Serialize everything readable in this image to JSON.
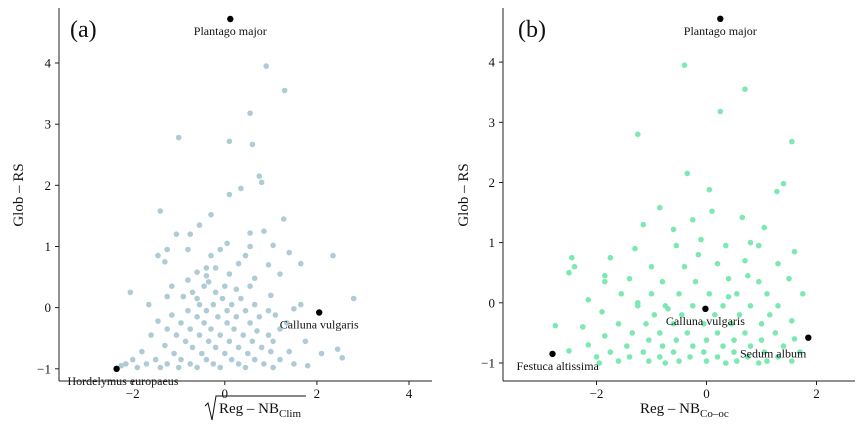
{
  "chart_data": [
    {
      "type": "scatter",
      "panel_label": "(a)",
      "xlabel": "Reg – NB",
      "xlabel_sub": "Clim",
      "xlabel_sqrt": true,
      "ylabel": "Glob – RS",
      "xlim": [
        -3.6,
        4.5
      ],
      "ylim": [
        -1.2,
        4.9
      ],
      "xticks": [
        -2,
        0,
        2,
        4
      ],
      "yticks": [
        -1,
        0,
        1,
        2,
        3,
        4
      ],
      "grid": false,
      "point_color": "#aecbd6",
      "highlight_color": "#000000",
      "highlighted": [
        {
          "label": "Plantago major",
          "x": 0.12,
          "y": 4.72,
          "label_pos": "below"
        },
        {
          "label": "Calluna vulgaris",
          "x": 2.05,
          "y": -0.08,
          "label_pos": "below"
        },
        {
          "label": "Hordelymus europaeus",
          "x": -2.35,
          "y": -1.0,
          "label_pos": "below"
        }
      ],
      "points": [
        [
          0.9,
          3.95
        ],
        [
          1.3,
          3.55
        ],
        [
          0.55,
          3.18
        ],
        [
          -1.0,
          2.78
        ],
        [
          0.6,
          2.67
        ],
        [
          0.1,
          2.72
        ],
        [
          0.75,
          2.15
        ],
        [
          0.8,
          2.05
        ],
        [
          0.1,
          1.85
        ],
        [
          0.35,
          1.95
        ],
        [
          -1.4,
          1.58
        ],
        [
          -0.3,
          1.52
        ],
        [
          1.28,
          1.45
        ],
        [
          -0.55,
          1.35
        ],
        [
          -0.75,
          1.2
        ],
        [
          0.55,
          1.22
        ],
        [
          0.85,
          1.25
        ],
        [
          -1.05,
          1.2
        ],
        [
          0.55,
          1.0
        ],
        [
          0.05,
          1.05
        ],
        [
          1.05,
          1.02
        ],
        [
          -1.45,
          0.85
        ],
        [
          -1.25,
          0.95
        ],
        [
          -0.8,
          0.95
        ],
        [
          1.4,
          0.9
        ],
        [
          2.35,
          0.85
        ],
        [
          -1.3,
          0.75
        ],
        [
          -0.4,
          0.65
        ],
        [
          -0.2,
          0.65
        ],
        [
          1.65,
          0.72
        ],
        [
          0.3,
          0.72
        ],
        [
          0.95,
          0.7
        ],
        [
          -0.6,
          0.58
        ],
        [
          -0.4,
          0.52
        ],
        [
          0.1,
          0.55
        ],
        [
          -0.8,
          0.45
        ],
        [
          -0.35,
          0.42
        ],
        [
          0.65,
          0.48
        ],
        [
          -1.15,
          0.35
        ],
        [
          -0.45,
          0.35
        ],
        [
          -0.2,
          0.25
        ],
        [
          0.25,
          0.3
        ],
        [
          -1.25,
          0.18
        ],
        [
          -0.9,
          0.18
        ],
        [
          -0.6,
          0.15
        ],
        [
          -0.05,
          0.15
        ],
        [
          0.35,
          0.15
        ],
        [
          1.0,
          0.2
        ],
        [
          -2.05,
          0.25
        ],
        [
          2.8,
          0.15
        ],
        [
          -1.65,
          0.05
        ],
        [
          -0.55,
          0.05
        ],
        [
          -0.25,
          0.05
        ],
        [
          0.15,
          0.05
        ],
        [
          0.65,
          0.05
        ],
        [
          1.65,
          0.05
        ],
        [
          -0.8,
          -0.05
        ],
        [
          -0.4,
          -0.05
        ],
        [
          0.05,
          -0.05
        ],
        [
          0.45,
          -0.05
        ],
        [
          0.95,
          -0.05
        ],
        [
          1.5,
          -0.02
        ],
        [
          -1.15,
          -0.12
        ],
        [
          -0.6,
          -0.15
        ],
        [
          -0.15,
          -0.15
        ],
        [
          0.25,
          -0.15
        ],
        [
          0.75,
          -0.15
        ],
        [
          1.1,
          -0.12
        ],
        [
          -1.45,
          -0.22
        ],
        [
          -0.95,
          -0.25
        ],
        [
          -0.45,
          -0.25
        ],
        [
          0.05,
          -0.25
        ],
        [
          0.55,
          -0.25
        ],
        [
          1.35,
          -0.25
        ],
        [
          -1.25,
          -0.35
        ],
        [
          -0.75,
          -0.35
        ],
        [
          -0.3,
          -0.35
        ],
        [
          0.2,
          -0.35
        ],
        [
          0.7,
          -0.38
        ],
        [
          1.2,
          -0.35
        ],
        [
          -1.6,
          -0.45
        ],
        [
          -1.05,
          -0.45
        ],
        [
          -0.55,
          -0.45
        ],
        [
          -0.1,
          -0.45
        ],
        [
          0.4,
          -0.45
        ],
        [
          0.95,
          -0.45
        ],
        [
          -0.85,
          -0.55
        ],
        [
          -0.35,
          -0.55
        ],
        [
          0.1,
          -0.55
        ],
        [
          0.6,
          -0.55
        ],
        [
          1.05,
          -0.55
        ],
        [
          1.75,
          -0.55
        ],
        [
          -1.3,
          -0.62
        ],
        [
          -0.7,
          -0.65
        ],
        [
          -0.2,
          -0.65
        ],
        [
          0.3,
          -0.65
        ],
        [
          0.8,
          -0.65
        ],
        [
          2.45,
          -0.68
        ],
        [
          -1.8,
          -0.72
        ],
        [
          -1.1,
          -0.75
        ],
        [
          -0.5,
          -0.75
        ],
        [
          0.0,
          -0.75
        ],
        [
          0.5,
          -0.75
        ],
        [
          1.0,
          -0.72
        ],
        [
          1.4,
          -0.72
        ],
        [
          2.1,
          -0.75
        ],
        [
          -2.0,
          -0.85
        ],
        [
          -1.5,
          -0.85
        ],
        [
          -0.95,
          -0.85
        ],
        [
          -0.4,
          -0.85
        ],
        [
          0.15,
          -0.85
        ],
        [
          0.65,
          -0.85
        ],
        [
          1.2,
          -0.85
        ],
        [
          2.55,
          -0.82
        ],
        [
          -2.15,
          -0.92
        ],
        [
          -1.7,
          -0.92
        ],
        [
          -1.25,
          -0.92
        ],
        [
          -0.75,
          -0.92
        ],
        [
          -0.25,
          -0.92
        ],
        [
          0.3,
          -0.92
        ],
        [
          0.85,
          -0.92
        ],
        [
          1.5,
          -0.92
        ],
        [
          1.8,
          -0.95
        ],
        [
          -1.9,
          -0.98
        ],
        [
          -1.4,
          -0.98
        ],
        [
          -1.0,
          -0.98
        ],
        [
          -0.6,
          -0.98
        ],
        [
          -0.1,
          -0.98
        ],
        [
          0.45,
          -0.98
        ],
        [
          1.05,
          -0.98
        ],
        [
          -2.25,
          -0.95
        ],
        [
          -0.3,
          0.85
        ],
        [
          0.45,
          0.85
        ],
        [
          -0.1,
          0.95
        ],
        [
          1.2,
          0.55
        ],
        [
          0.0,
          0.35
        ],
        [
          -0.7,
          0.25
        ],
        [
          0.55,
          0.35
        ]
      ]
    },
    {
      "type": "scatter",
      "panel_label": "(b)",
      "xlabel": "Reg – NB",
      "xlabel_sub": "Co–oc",
      "xlabel_sqrt": false,
      "ylabel": "Glob – RS",
      "xlim": [
        -3.7,
        2.7
      ],
      "ylim": [
        -1.3,
        4.9
      ],
      "xticks": [
        -2,
        0,
        2
      ],
      "yticks": [
        -1,
        0,
        1,
        2,
        3,
        4
      ],
      "grid": false,
      "point_color": "#7de8b1",
      "highlight_color": "#000000",
      "highlighted": [
        {
          "label": "Plantago major",
          "x": 0.25,
          "y": 4.72,
          "label_pos": "below"
        },
        {
          "label": "Calluna vulgaris",
          "x": -0.02,
          "y": -0.1,
          "label_pos": "below"
        },
        {
          "label": "Sedum album",
          "x": 1.85,
          "y": -0.58,
          "label_pos": "below-left"
        },
        {
          "label": "Festuca altissima",
          "x": -2.8,
          "y": -0.85,
          "label_pos": "below"
        }
      ],
      "points": [
        [
          -0.4,
          3.95
        ],
        [
          0.7,
          3.55
        ],
        [
          0.25,
          3.18
        ],
        [
          -1.25,
          2.8
        ],
        [
          1.55,
          2.68
        ],
        [
          -0.35,
          2.15
        ],
        [
          0.05,
          1.88
        ],
        [
          1.4,
          1.98
        ],
        [
          1.28,
          1.85
        ],
        [
          -0.85,
          1.58
        ],
        [
          0.1,
          1.52
        ],
        [
          -1.15,
          1.3
        ],
        [
          -0.25,
          1.38
        ],
        [
          0.65,
          1.42
        ],
        [
          1.05,
          1.25
        ],
        [
          -0.6,
          1.22
        ],
        [
          0.8,
          1.0
        ],
        [
          -0.1,
          1.05
        ],
        [
          -2.45,
          0.75
        ],
        [
          -1.85,
          0.45
        ],
        [
          -1.3,
          0.9
        ],
        [
          -0.55,
          0.95
        ],
        [
          0.35,
          0.95
        ],
        [
          0.95,
          0.95
        ],
        [
          1.6,
          0.85
        ],
        [
          -1.75,
          0.75
        ],
        [
          -1.0,
          0.6
        ],
        [
          -0.4,
          0.6
        ],
        [
          0.2,
          0.65
        ],
        [
          0.7,
          0.7
        ],
        [
          1.3,
          0.65
        ],
        [
          -2.4,
          0.6
        ],
        [
          -1.85,
          0.35
        ],
        [
          -1.4,
          0.4
        ],
        [
          -0.8,
          0.35
        ],
        [
          -0.2,
          0.35
        ],
        [
          0.4,
          0.4
        ],
        [
          0.95,
          0.35
        ],
        [
          1.5,
          0.4
        ],
        [
          -2.5,
          0.5
        ],
        [
          -1.55,
          0.15
        ],
        [
          -1.0,
          0.15
        ],
        [
          -0.5,
          0.15
        ],
        [
          0.05,
          0.15
        ],
        [
          0.55,
          0.15
        ],
        [
          1.1,
          0.15
        ],
        [
          1.75,
          0.15
        ],
        [
          -2.15,
          0.05
        ],
        [
          -1.25,
          -0.05
        ],
        [
          -0.75,
          -0.05
        ],
        [
          -0.25,
          -0.05
        ],
        [
          0.3,
          -0.05
        ],
        [
          0.8,
          -0.05
        ],
        [
          1.3,
          -0.05
        ],
        [
          -1.9,
          -0.15
        ],
        [
          -0.95,
          -0.2
        ],
        [
          -0.45,
          -0.2
        ],
        [
          0.15,
          -0.2
        ],
        [
          0.6,
          -0.2
        ],
        [
          1.15,
          -0.2
        ],
        [
          -1.6,
          -0.35
        ],
        [
          -1.1,
          -0.35
        ],
        [
          -0.6,
          -0.35
        ],
        [
          -0.05,
          -0.35
        ],
        [
          0.45,
          -0.35
        ],
        [
          1.0,
          -0.35
        ],
        [
          1.55,
          -0.3
        ],
        [
          -2.25,
          -0.4
        ],
        [
          -2.75,
          -0.38
        ],
        [
          -1.35,
          -0.5
        ],
        [
          -0.85,
          -0.5
        ],
        [
          -0.35,
          -0.5
        ],
        [
          0.2,
          -0.5
        ],
        [
          0.7,
          -0.5
        ],
        [
          1.25,
          -0.5
        ],
        [
          -1.85,
          -0.55
        ],
        [
          -1.05,
          -0.62
        ],
        [
          -0.55,
          -0.62
        ],
        [
          0.0,
          -0.62
        ],
        [
          0.5,
          -0.62
        ],
        [
          1.0,
          -0.62
        ],
        [
          1.6,
          -0.6
        ],
        [
          -2.15,
          -0.7
        ],
        [
          -1.45,
          -0.72
        ],
        [
          -0.8,
          -0.72
        ],
        [
          -0.25,
          -0.72
        ],
        [
          0.3,
          -0.72
        ],
        [
          0.8,
          -0.72
        ],
        [
          1.4,
          -0.72
        ],
        [
          -2.5,
          -0.8
        ],
        [
          -1.75,
          -0.82
        ],
        [
          -1.15,
          -0.82
        ],
        [
          -0.6,
          -0.82
        ],
        [
          -0.05,
          -0.82
        ],
        [
          0.5,
          -0.82
        ],
        [
          1.05,
          -0.82
        ],
        [
          1.7,
          -0.82
        ],
        [
          -2.0,
          -0.9
        ],
        [
          -1.4,
          -0.9
        ],
        [
          -0.85,
          -0.9
        ],
        [
          -0.3,
          -0.9
        ],
        [
          0.2,
          -0.9
        ],
        [
          0.75,
          -0.9
        ],
        [
          1.3,
          -0.9
        ],
        [
          -1.6,
          -0.97
        ],
        [
          -1.05,
          -0.97
        ],
        [
          -0.5,
          -0.97
        ],
        [
          0.0,
          -0.97
        ],
        [
          0.55,
          -0.97
        ],
        [
          1.1,
          -0.97
        ],
        [
          1.55,
          -0.97
        ],
        [
          -1.95,
          -1.0
        ],
        [
          -0.75,
          -1.0
        ],
        [
          0.35,
          -1.0
        ],
        [
          0.95,
          -1.0
        ],
        [
          -1.25,
          0.0
        ],
        [
          0.75,
          0.45
        ],
        [
          -0.15,
          0.8
        ],
        [
          0.4,
          0.1
        ],
        [
          -0.7,
          -0.1
        ]
      ]
    }
  ]
}
